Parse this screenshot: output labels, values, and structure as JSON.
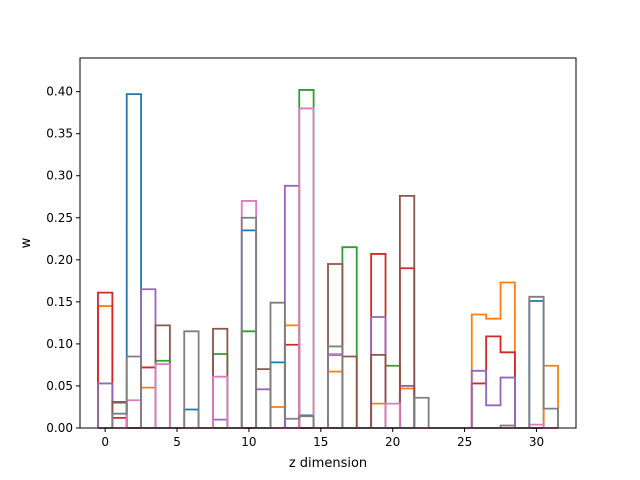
{
  "chart_data": {
    "type": "step",
    "xlabel": "z dimension",
    "ylabel": "w",
    "xlim": [
      -1.75,
      32.75
    ],
    "ylim": [
      0,
      0.44
    ],
    "xticks": [
      0,
      5,
      10,
      15,
      20,
      25,
      30
    ],
    "xtick_labels": [
      "0",
      "5",
      "10",
      "15",
      "20",
      "25",
      "30"
    ],
    "yticks": [
      0,
      0.05,
      0.1,
      0.15,
      0.2,
      0.25,
      0.3,
      0.35,
      0.4
    ],
    "ytick_labels": [
      "0.00",
      "0.05",
      "0.10",
      "0.15",
      "0.20",
      "0.25",
      "0.30",
      "0.35",
      "0.40"
    ],
    "grid": false,
    "series_colors": [
      "#1f77b4",
      "#ff7f0e",
      "#2ca02c",
      "#d62728",
      "#9467bd",
      "#8c564b",
      "#e377c2",
      "#7f7f7f"
    ],
    "series": [
      {
        "values": [
          0,
          0,
          0.397,
          0,
          0,
          0,
          0.022,
          0,
          0,
          0,
          0.235,
          0,
          0.078,
          0,
          0.015,
          0,
          0.087,
          0,
          0,
          0,
          0,
          0,
          0,
          0,
          0,
          0,
          0,
          0,
          0,
          0,
          0.151,
          0
        ]
      },
      {
        "values": [
          0.145,
          0,
          0,
          0.048,
          0,
          0,
          0,
          0,
          0,
          0,
          0,
          0,
          0.025,
          0.122,
          0,
          0,
          0.067,
          0,
          0,
          0.029,
          0,
          0.047,
          0,
          0,
          0,
          0,
          0.135,
          0.13,
          0.173,
          0,
          0,
          0.074
        ]
      },
      {
        "values": [
          0,
          0,
          0,
          0,
          0.08,
          0,
          0,
          0,
          0.088,
          0,
          0.115,
          0,
          0,
          0,
          0.402,
          0,
          0,
          0.215,
          0,
          0,
          0.074,
          0,
          0,
          0,
          0,
          0,
          0,
          0,
          0,
          0,
          0,
          0
        ]
      },
      {
        "values": [
          0.161,
          0.012,
          0,
          0.072,
          0,
          0,
          0,
          0,
          0,
          0,
          0,
          0,
          0,
          0.099,
          0,
          0,
          0,
          0,
          0,
          0.207,
          0,
          0.19,
          0,
          0,
          0,
          0,
          0.053,
          0.109,
          0.09,
          0,
          0,
          0
        ]
      },
      {
        "values": [
          0.053,
          0.03,
          0,
          0.165,
          0,
          0,
          0,
          0,
          0.01,
          0,
          0,
          0.046,
          0,
          0.288,
          0,
          0,
          0,
          0,
          0,
          0.132,
          0,
          0.05,
          0,
          0,
          0,
          0,
          0.068,
          0.027,
          0.06,
          0,
          0,
          0
        ]
      },
      {
        "values": [
          0,
          0.031,
          0,
          0,
          0.122,
          0,
          0,
          0,
          0.118,
          0,
          0,
          0.07,
          0,
          0,
          0,
          0,
          0.195,
          0.085,
          0,
          0.087,
          0,
          0.276,
          0,
          0,
          0,
          0,
          0,
          0,
          0,
          0,
          0,
          0
        ]
      },
      {
        "values": [
          0,
          0,
          0.033,
          0,
          0.076,
          0,
          0,
          0,
          0.061,
          0,
          0.27,
          0,
          0,
          0,
          0.38,
          0,
          0.088,
          0,
          0,
          0,
          0.029,
          0,
          0,
          0,
          0,
          0,
          0,
          0,
          0,
          0,
          0.004,
          0
        ]
      },
      {
        "values": [
          0,
          0.017,
          0.085,
          0,
          0,
          0,
          0.115,
          0,
          0,
          0,
          0.25,
          0,
          0.149,
          0.011,
          0.014,
          0,
          0.097,
          0,
          0,
          0,
          0,
          0,
          0.036,
          0,
          0,
          0,
          0,
          0,
          0.003,
          0,
          0.156,
          0.023
        ]
      }
    ]
  }
}
